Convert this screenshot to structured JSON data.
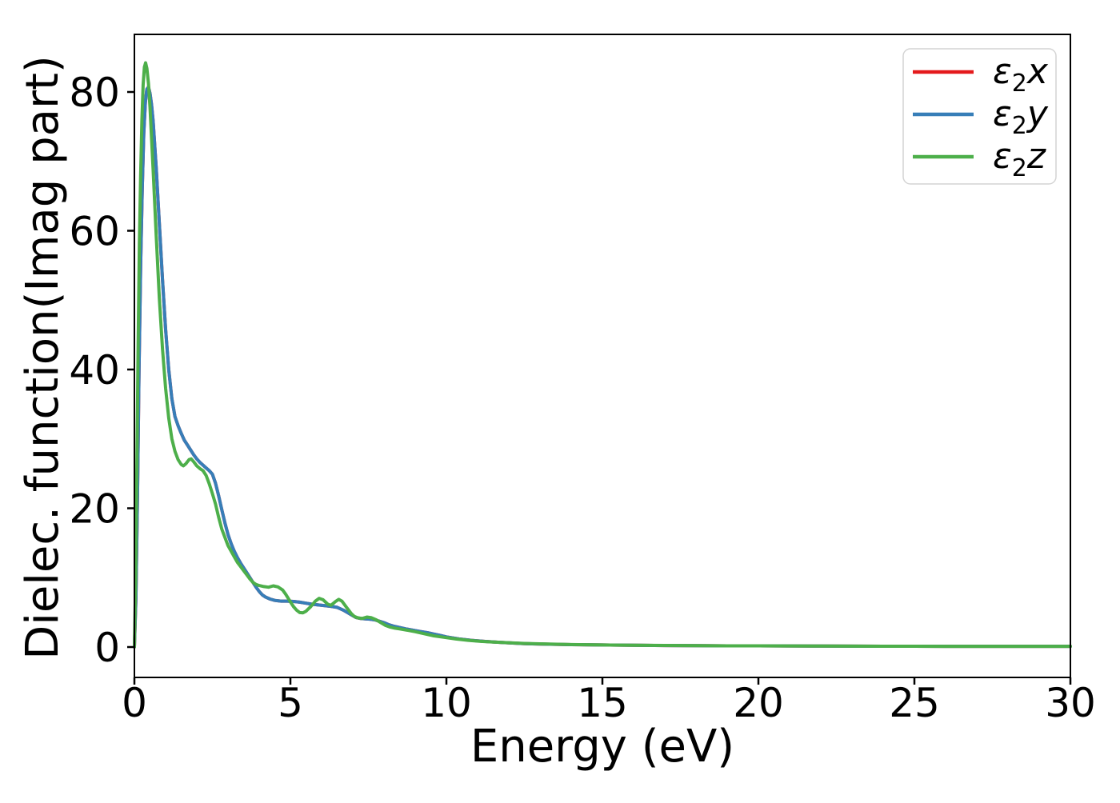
{
  "figure": {
    "background": "#ffffff",
    "spine_color": "#000000"
  },
  "chart_data": {
    "type": "line",
    "title": "",
    "xlabel": "Energy (eV)",
    "ylabel": "Dielec. function(Imag part)",
    "xlim": [
      0,
      30
    ],
    "ylim": [
      -4.4,
      88.3
    ],
    "x_ticks": [
      0,
      5,
      10,
      15,
      20,
      25,
      30
    ],
    "y_ticks": [
      0,
      20,
      40,
      60,
      80
    ],
    "grid": false,
    "legend_position": "upper right",
    "legend_border_color": "#d4d4d4",
    "series": [
      {
        "name": "eps2x",
        "color": "#e41a1c",
        "label": {
          "symbol": "ε",
          "sub": "2",
          "axis": "x"
        },
        "note_visible": "curve coincides with ε2y and is hidden beneath it",
        "points": [
          [
            0,
            0
          ],
          [
            0.05,
            7
          ],
          [
            0.1,
            22
          ],
          [
            0.15,
            40
          ],
          [
            0.2,
            55
          ],
          [
            0.25,
            66
          ],
          [
            0.3,
            74
          ],
          [
            0.35,
            78.5
          ],
          [
            0.4,
            80.4
          ],
          [
            0.45,
            80.7
          ],
          [
            0.5,
            79.8
          ],
          [
            0.55,
            78.2
          ],
          [
            0.6,
            75.8
          ],
          [
            0.7,
            69
          ],
          [
            0.8,
            61
          ],
          [
            0.9,
            53
          ],
          [
            1,
            45.8
          ],
          [
            1.1,
            40
          ],
          [
            1.2,
            35.8
          ],
          [
            1.3,
            33.2
          ],
          [
            1.4,
            31.9
          ],
          [
            1.5,
            30.8
          ],
          [
            1.6,
            29.8
          ],
          [
            1.7,
            29.1
          ],
          [
            1.8,
            28.4
          ],
          [
            1.9,
            27.7
          ],
          [
            2,
            27.1
          ],
          [
            2.1,
            26.6
          ],
          [
            2.2,
            26.2
          ],
          [
            2.3,
            25.8
          ],
          [
            2.4,
            25.4
          ],
          [
            2.5,
            24.9
          ],
          [
            2.6,
            23.6
          ],
          [
            2.7,
            21.8
          ],
          [
            2.8,
            19.8
          ],
          [
            2.9,
            17.9
          ],
          [
            3,
            16.2
          ],
          [
            3.1,
            14.9
          ],
          [
            3.2,
            13.8
          ],
          [
            3.3,
            12.9
          ],
          [
            3.4,
            12.1
          ],
          [
            3.5,
            11.4
          ],
          [
            3.6,
            10.7
          ],
          [
            3.7,
            10
          ],
          [
            3.8,
            9.3
          ],
          [
            3.9,
            8.6
          ],
          [
            4,
            8
          ],
          [
            4.1,
            7.5
          ],
          [
            4.2,
            7.2
          ],
          [
            4.35,
            6.9
          ],
          [
            4.5,
            6.7
          ],
          [
            4.7,
            6.6
          ],
          [
            4.9,
            6.6
          ],
          [
            5.1,
            6.55
          ],
          [
            5.3,
            6.45
          ],
          [
            5.5,
            6.3
          ],
          [
            5.7,
            6.15
          ],
          [
            5.9,
            6.05
          ],
          [
            6.1,
            5.95
          ],
          [
            6.3,
            5.85
          ],
          [
            6.5,
            5.7
          ],
          [
            6.7,
            5.3
          ],
          [
            6.85,
            4.9
          ],
          [
            7,
            4.5
          ],
          [
            7.1,
            4.25
          ],
          [
            7.25,
            4.1
          ],
          [
            7.4,
            4.05
          ],
          [
            7.55,
            4
          ],
          [
            7.7,
            3.9
          ],
          [
            7.85,
            3.7
          ],
          [
            8,
            3.5
          ],
          [
            8.15,
            3.2
          ],
          [
            8.3,
            3
          ],
          [
            8.5,
            2.8
          ],
          [
            8.7,
            2.6
          ],
          [
            9,
            2.35
          ],
          [
            9.2,
            2.2
          ],
          [
            9.4,
            2.05
          ],
          [
            9.6,
            1.85
          ],
          [
            9.8,
            1.65
          ],
          [
            10,
            1.45
          ],
          [
            10.4,
            1.15
          ],
          [
            10.8,
            0.95
          ],
          [
            11.2,
            0.8
          ],
          [
            11.6,
            0.68
          ],
          [
            12,
            0.58
          ],
          [
            12.5,
            0.48
          ],
          [
            13,
            0.42
          ],
          [
            14,
            0.33
          ],
          [
            15,
            0.28
          ],
          [
            16,
            0.24
          ],
          [
            17,
            0.2
          ],
          [
            18,
            0.18
          ],
          [
            19,
            0.16
          ],
          [
            20,
            0.15
          ],
          [
            22,
            0.12
          ],
          [
            24,
            0.1
          ],
          [
            26,
            0.09
          ],
          [
            28,
            0.08
          ],
          [
            30,
            0.08
          ]
        ]
      },
      {
        "name": "eps2y",
        "color": "#377eb8",
        "label": {
          "symbol": "ε",
          "sub": "2",
          "axis": "y"
        },
        "points": [
          [
            0,
            0
          ],
          [
            0.05,
            7
          ],
          [
            0.1,
            22
          ],
          [
            0.15,
            40
          ],
          [
            0.2,
            55
          ],
          [
            0.25,
            66
          ],
          [
            0.3,
            74
          ],
          [
            0.35,
            78.5
          ],
          [
            0.4,
            80.4
          ],
          [
            0.45,
            80.7
          ],
          [
            0.5,
            79.8
          ],
          [
            0.55,
            78.2
          ],
          [
            0.6,
            75.8
          ],
          [
            0.7,
            69
          ],
          [
            0.8,
            61
          ],
          [
            0.9,
            53
          ],
          [
            1,
            45.8
          ],
          [
            1.1,
            40
          ],
          [
            1.2,
            35.8
          ],
          [
            1.3,
            33.2
          ],
          [
            1.4,
            31.9
          ],
          [
            1.5,
            30.8
          ],
          [
            1.6,
            29.8
          ],
          [
            1.7,
            29.1
          ],
          [
            1.8,
            28.4
          ],
          [
            1.9,
            27.7
          ],
          [
            2,
            27.1
          ],
          [
            2.1,
            26.6
          ],
          [
            2.2,
            26.2
          ],
          [
            2.3,
            25.8
          ],
          [
            2.4,
            25.4
          ],
          [
            2.5,
            24.9
          ],
          [
            2.6,
            23.6
          ],
          [
            2.7,
            21.8
          ],
          [
            2.8,
            19.8
          ],
          [
            2.9,
            17.9
          ],
          [
            3,
            16.2
          ],
          [
            3.1,
            14.9
          ],
          [
            3.2,
            13.8
          ],
          [
            3.3,
            12.9
          ],
          [
            3.4,
            12.1
          ],
          [
            3.5,
            11.4
          ],
          [
            3.6,
            10.7
          ],
          [
            3.7,
            10
          ],
          [
            3.8,
            9.3
          ],
          [
            3.9,
            8.6
          ],
          [
            4,
            8
          ],
          [
            4.1,
            7.5
          ],
          [
            4.2,
            7.2
          ],
          [
            4.35,
            6.9
          ],
          [
            4.5,
            6.7
          ],
          [
            4.7,
            6.6
          ],
          [
            4.9,
            6.6
          ],
          [
            5.1,
            6.55
          ],
          [
            5.3,
            6.45
          ],
          [
            5.5,
            6.3
          ],
          [
            5.7,
            6.15
          ],
          [
            5.9,
            6.05
          ],
          [
            6.1,
            5.95
          ],
          [
            6.3,
            5.85
          ],
          [
            6.5,
            5.7
          ],
          [
            6.7,
            5.3
          ],
          [
            6.85,
            4.9
          ],
          [
            7,
            4.5
          ],
          [
            7.1,
            4.25
          ],
          [
            7.25,
            4.1
          ],
          [
            7.4,
            4.05
          ],
          [
            7.55,
            4
          ],
          [
            7.7,
            3.9
          ],
          [
            7.85,
            3.7
          ],
          [
            8,
            3.5
          ],
          [
            8.15,
            3.2
          ],
          [
            8.3,
            3
          ],
          [
            8.5,
            2.8
          ],
          [
            8.7,
            2.6
          ],
          [
            9,
            2.35
          ],
          [
            9.2,
            2.2
          ],
          [
            9.4,
            2.05
          ],
          [
            9.6,
            1.85
          ],
          [
            9.8,
            1.65
          ],
          [
            10,
            1.45
          ],
          [
            10.4,
            1.15
          ],
          [
            10.8,
            0.95
          ],
          [
            11.2,
            0.8
          ],
          [
            11.6,
            0.68
          ],
          [
            12,
            0.58
          ],
          [
            12.5,
            0.48
          ],
          [
            13,
            0.42
          ],
          [
            14,
            0.33
          ],
          [
            15,
            0.28
          ],
          [
            16,
            0.24
          ],
          [
            17,
            0.2
          ],
          [
            18,
            0.18
          ],
          [
            19,
            0.16
          ],
          [
            20,
            0.15
          ],
          [
            22,
            0.12
          ],
          [
            24,
            0.1
          ],
          [
            26,
            0.09
          ],
          [
            28,
            0.08
          ],
          [
            30,
            0.08
          ]
        ]
      },
      {
        "name": "eps2z",
        "color": "#4daf4a",
        "label": {
          "symbol": "ε",
          "sub": "2",
          "axis": "z"
        },
        "points": [
          [
            0,
            0
          ],
          [
            0.04,
            10
          ],
          [
            0.08,
            26
          ],
          [
            0.12,
            44
          ],
          [
            0.16,
            58
          ],
          [
            0.2,
            68
          ],
          [
            0.24,
            76
          ],
          [
            0.28,
            81
          ],
          [
            0.32,
            83.6
          ],
          [
            0.36,
            84.2
          ],
          [
            0.4,
            83.4
          ],
          [
            0.45,
            81.2
          ],
          [
            0.5,
            77.8
          ],
          [
            0.6,
            68.8
          ],
          [
            0.7,
            59.2
          ],
          [
            0.8,
            50.2
          ],
          [
            0.9,
            43
          ],
          [
            1,
            37.3
          ],
          [
            1.1,
            33
          ],
          [
            1.2,
            30
          ],
          [
            1.3,
            28.2
          ],
          [
            1.4,
            27
          ],
          [
            1.5,
            26.3
          ],
          [
            1.57,
            26.1
          ],
          [
            1.65,
            26.4
          ],
          [
            1.75,
            27
          ],
          [
            1.82,
            27.1
          ],
          [
            1.9,
            26.7
          ],
          [
            2,
            26.1
          ],
          [
            2.1,
            25.7
          ],
          [
            2.2,
            25.4
          ],
          [
            2.3,
            24.7
          ],
          [
            2.4,
            23.5
          ],
          [
            2.5,
            22.1
          ],
          [
            2.6,
            20.6
          ],
          [
            2.7,
            18.7
          ],
          [
            2.8,
            17
          ],
          [
            2.9,
            15.8
          ],
          [
            3,
            14.6
          ],
          [
            3.1,
            13.8
          ],
          [
            3.2,
            13
          ],
          [
            3.3,
            12.2
          ],
          [
            3.4,
            11.6
          ],
          [
            3.5,
            11
          ],
          [
            3.6,
            10.4
          ],
          [
            3.7,
            9.8
          ],
          [
            3.8,
            9.3
          ],
          [
            3.9,
            9
          ],
          [
            4,
            8.85
          ],
          [
            4.15,
            8.7
          ],
          [
            4.3,
            8.6
          ],
          [
            4.45,
            8.8
          ],
          [
            4.6,
            8.65
          ],
          [
            4.75,
            8.2
          ],
          [
            4.85,
            7.6
          ],
          [
            5,
            6.5
          ],
          [
            5.1,
            5.8
          ],
          [
            5.2,
            5.3
          ],
          [
            5.3,
            4.95
          ],
          [
            5.4,
            4.9
          ],
          [
            5.5,
            5.15
          ],
          [
            5.65,
            5.8
          ],
          [
            5.8,
            6.6
          ],
          [
            5.92,
            7
          ],
          [
            6.05,
            6.8
          ],
          [
            6.2,
            6.15
          ],
          [
            6.3,
            6
          ],
          [
            6.45,
            6.55
          ],
          [
            6.55,
            6.85
          ],
          [
            6.65,
            6.6
          ],
          [
            6.8,
            5.7
          ],
          [
            6.95,
            4.8
          ],
          [
            7.05,
            4.4
          ],
          [
            7.15,
            4.2
          ],
          [
            7.3,
            4.1
          ],
          [
            7.45,
            4.3
          ],
          [
            7.6,
            4.2
          ],
          [
            7.75,
            3.9
          ],
          [
            7.9,
            3.5
          ],
          [
            8.05,
            3.1
          ],
          [
            8.2,
            2.85
          ],
          [
            8.35,
            2.7
          ],
          [
            8.5,
            2.6
          ],
          [
            8.7,
            2.45
          ],
          [
            9,
            2.2
          ],
          [
            9.3,
            1.9
          ],
          [
            9.6,
            1.6
          ],
          [
            9.9,
            1.4
          ],
          [
            10.3,
            1.15
          ],
          [
            10.7,
            0.95
          ],
          [
            11.1,
            0.8
          ],
          [
            11.5,
            0.7
          ],
          [
            12,
            0.6
          ],
          [
            12.5,
            0.5
          ],
          [
            13,
            0.44
          ],
          [
            14,
            0.34
          ],
          [
            15,
            0.28
          ],
          [
            16,
            0.24
          ],
          [
            17,
            0.21
          ],
          [
            18,
            0.18
          ],
          [
            19,
            0.16
          ],
          [
            20,
            0.15
          ],
          [
            22,
            0.12
          ],
          [
            24,
            0.1
          ],
          [
            26,
            0.09
          ],
          [
            28,
            0.08
          ],
          [
            30,
            0.08
          ]
        ]
      }
    ]
  }
}
